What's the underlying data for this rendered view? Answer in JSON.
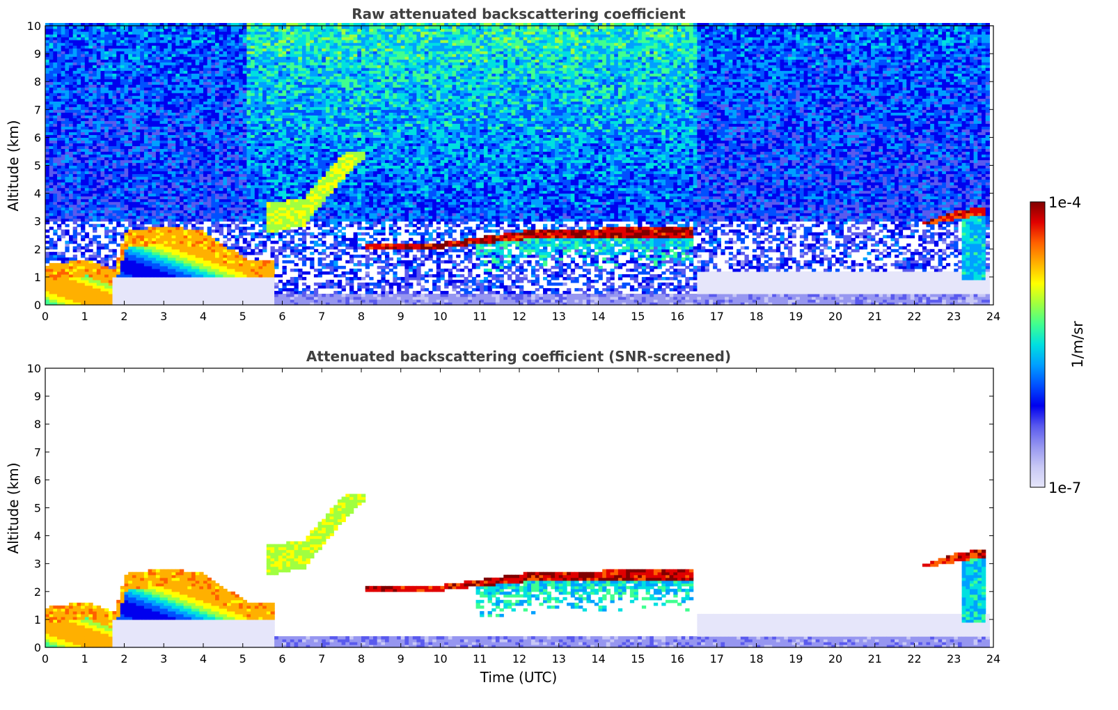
{
  "chart_data": [
    {
      "type": "heatmap",
      "title": "Raw attenuated backscattering coefficient",
      "xlabel": "",
      "ylabel": "Altitude (km)",
      "xlim": [
        0,
        24
      ],
      "ylim": [
        0,
        10
      ],
      "xticks": [
        "0",
        "1",
        "2",
        "3",
        "4",
        "5",
        "6",
        "7",
        "8",
        "9",
        "10",
        "11",
        "12",
        "13",
        "14",
        "15",
        "16",
        "17",
        "18",
        "19",
        "20",
        "21",
        "22",
        "23",
        "24"
      ],
      "yticks": [
        "0",
        "1",
        "2",
        "3",
        "4",
        "5",
        "6",
        "7",
        "8",
        "9",
        "10"
      ],
      "features": [
        {
          "kind": "boundary_layer",
          "x": [
            0,
            1,
            1.7,
            2,
            3,
            4,
            5,
            5.7
          ],
          "top": [
            1.4,
            1.6,
            1.2,
            2.6,
            2.8,
            2.6,
            1.6,
            1.5
          ]
        },
        {
          "kind": "aerosol_plume",
          "x": [
            5.5,
            6.5,
            7.5,
            8
          ],
          "base": [
            2.5,
            2.8,
            4.5,
            5.2
          ],
          "top": [
            3.6,
            3.8,
            5.4,
            5.4
          ]
        },
        {
          "kind": "cloud_layer",
          "x": [
            8,
            10,
            12,
            14,
            16.3
          ],
          "base": [
            1.9,
            2.0,
            2.3,
            2.4,
            2.4
          ],
          "top": [
            2.1,
            2.2,
            2.6,
            2.7,
            2.8
          ]
        },
        {
          "kind": "cloud_layer",
          "x": [
            22.2,
            23,
            23.8
          ],
          "base": [
            2.8,
            3.0,
            3.2
          ],
          "top": [
            2.95,
            3.3,
            3.5
          ]
        }
      ]
    },
    {
      "type": "heatmap",
      "title": "Attenuated backscattering coefficient (SNR-screened)",
      "xlabel": "Time (UTC)",
      "ylabel": "Altitude (km)",
      "xlim": [
        0,
        24
      ],
      "ylim": [
        0,
        10
      ],
      "xticks": [
        "0",
        "1",
        "2",
        "3",
        "4",
        "5",
        "6",
        "7",
        "8",
        "9",
        "10",
        "11",
        "12",
        "13",
        "14",
        "15",
        "16",
        "17",
        "18",
        "19",
        "20",
        "21",
        "22",
        "23",
        "24"
      ],
      "yticks": [
        "0",
        "1",
        "2",
        "3",
        "4",
        "5",
        "6",
        "7",
        "8",
        "9",
        "10"
      ],
      "screened": true
    }
  ],
  "colorbar": {
    "label": "1/m/sr",
    "max_label": "1e-4",
    "min_label": "1e-7",
    "scale": "log",
    "range": [
      1e-07,
      0.0001
    ],
    "colormap": [
      "#e6e6fa",
      "#c8c8f5",
      "#9696f0",
      "#5a5aee",
      "#0000ee",
      "#0050ff",
      "#00a0ff",
      "#00e0e0",
      "#40ff90",
      "#a0ff40",
      "#ffff00",
      "#ffb000",
      "#ff6000",
      "#e00000",
      "#800000"
    ]
  }
}
